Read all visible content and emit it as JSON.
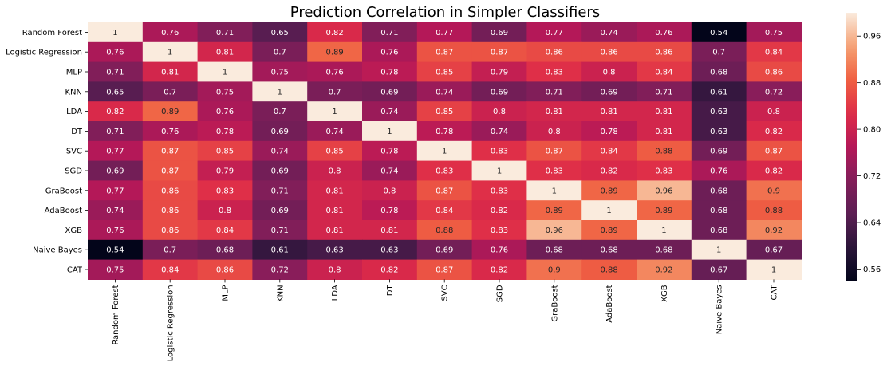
{
  "chart_data": {
    "type": "heatmap",
    "title": "Prediction Correlation in Simpler Classifiers",
    "xlabel": "",
    "ylabel": "",
    "labels": [
      "Random Forest",
      "Logistic Regression",
      "MLP",
      "KNN",
      "LDA",
      "DT",
      "SVC",
      "SGD",
      "GraBoost",
      "AdaBoost",
      "XGB",
      "Naive Bayes",
      "CAT"
    ],
    "matrix": [
      [
        1,
        0.76,
        0.71,
        0.65,
        0.82,
        0.71,
        0.77,
        0.69,
        0.77,
        0.74,
        0.76,
        0.54,
        0.75
      ],
      [
        0.76,
        1,
        0.81,
        0.7,
        0.89,
        0.76,
        0.87,
        0.87,
        0.86,
        0.86,
        0.86,
        0.7,
        0.84
      ],
      [
        0.71,
        0.81,
        1,
        0.75,
        0.76,
        0.78,
        0.85,
        0.79,
        0.83,
        0.8,
        0.84,
        0.68,
        0.86
      ],
      [
        0.65,
        0.7,
        0.75,
        1,
        0.7,
        0.69,
        0.74,
        0.69,
        0.71,
        0.69,
        0.71,
        0.61,
        0.72
      ],
      [
        0.82,
        0.89,
        0.76,
        0.7,
        1,
        0.74,
        0.85,
        0.8,
        0.81,
        0.81,
        0.81,
        0.63,
        0.8
      ],
      [
        0.71,
        0.76,
        0.78,
        0.69,
        0.74,
        1,
        0.78,
        0.74,
        0.8,
        0.78,
        0.81,
        0.63,
        0.82
      ],
      [
        0.77,
        0.87,
        0.85,
        0.74,
        0.85,
        0.78,
        1,
        0.83,
        0.87,
        0.84,
        0.88,
        0.69,
        0.87
      ],
      [
        0.69,
        0.87,
        0.79,
        0.69,
        0.8,
        0.74,
        0.83,
        1,
        0.83,
        0.82,
        0.83,
        0.76,
        0.82
      ],
      [
        0.77,
        0.86,
        0.83,
        0.71,
        0.81,
        0.8,
        0.87,
        0.83,
        1,
        0.89,
        0.96,
        0.68,
        0.9
      ],
      [
        0.74,
        0.86,
        0.8,
        0.69,
        0.81,
        0.78,
        0.84,
        0.82,
        0.89,
        1,
        0.89,
        0.68,
        0.88
      ],
      [
        0.76,
        0.86,
        0.84,
        0.71,
        0.81,
        0.81,
        0.88,
        0.83,
        0.96,
        0.89,
        1,
        0.68,
        0.92
      ],
      [
        0.54,
        0.7,
        0.68,
        0.61,
        0.63,
        0.63,
        0.69,
        0.76,
        0.68,
        0.68,
        0.68,
        1,
        0.67
      ],
      [
        0.75,
        0.84,
        0.86,
        0.72,
        0.8,
        0.82,
        0.87,
        0.82,
        0.9,
        0.88,
        0.92,
        0.67,
        1
      ]
    ],
    "value_range": [
      0.54,
      1
    ],
    "colormap": "rocket",
    "colorbar": {
      "ticks": [
        0.56,
        0.64,
        0.72,
        0.8,
        0.88,
        0.96
      ],
      "tick_labels": [
        "0.56",
        "0.64",
        "0.72",
        "0.80",
        "0.88",
        "0.96"
      ]
    },
    "annotated": true,
    "grid": false
  }
}
